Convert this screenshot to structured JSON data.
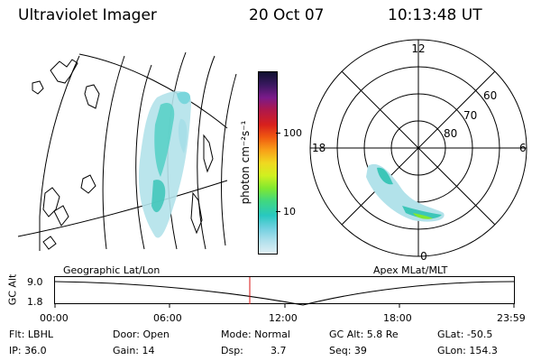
{
  "header": {
    "instrument": "Ultraviolet Imager",
    "date": "20 Oct 07",
    "time": "10:13:48 UT"
  },
  "colorbar": {
    "label": "photon cm⁻²s⁻¹",
    "ticks": [
      "100",
      "10"
    ],
    "colors": [
      "#101030",
      "#3a1860",
      "#7a1a8a",
      "#b0184a",
      "#d8201c",
      "#f05a10",
      "#f8a018",
      "#f0d820",
      "#d0f020",
      "#80e830",
      "#40d880",
      "#28c8c0",
      "#70d0e0",
      "#b0e0ec",
      "#e0eef4"
    ]
  },
  "polar_plot": {
    "mlt_labels": [
      "12",
      "18",
      "6",
      "0"
    ],
    "lat_labels": [
      "60",
      "70",
      "80"
    ]
  },
  "altitude_plot": {
    "left_title": "Geographic Lat/Lon",
    "right_title": "Apex MLat/MLT",
    "ylabel": "GC Alt",
    "y_ticks": [
      "9.0",
      "1.8"
    ],
    "x_ticks": [
      "00:00",
      "06:00",
      "12:00",
      "18:00",
      "23:59"
    ]
  },
  "info": {
    "row1": {
      "flt": "Flt: LBHL",
      "door": "Door: Open",
      "mode": "Mode: Normal",
      "gcalt": "GC Alt: 5.8 Re",
      "glat": "GLat: -50.5"
    },
    "row2": {
      "ip": "IP: 36.0",
      "gain": "Gain: 14",
      "dsp_label": "Dsp:",
      "dsp_value": "3.7",
      "seq": "Seq: 39",
      "glon": "GLon: 154.3"
    }
  }
}
